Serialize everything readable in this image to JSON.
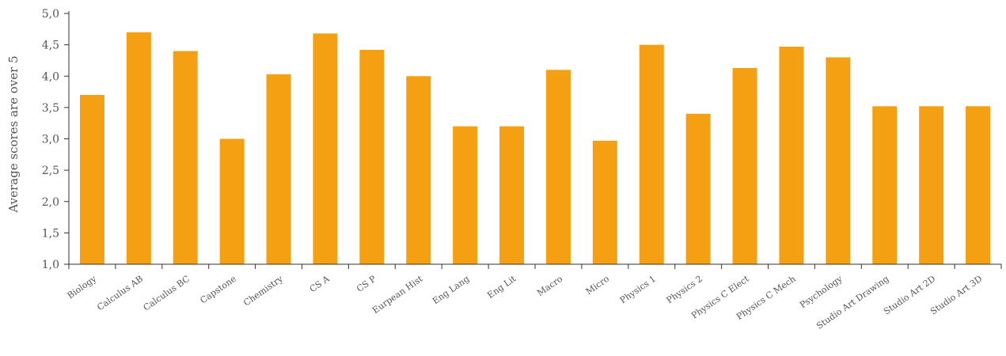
{
  "chart_data": {
    "type": "bar",
    "title": "",
    "xlabel": "",
    "ylabel": "Average scores are over 5",
    "ylim": [
      1.0,
      5.0
    ],
    "yticks": [
      "1,0",
      "1,5",
      "2,0",
      "2,5",
      "3,0",
      "3,5",
      "4,0",
      "4,5",
      "5,0"
    ],
    "grid": false,
    "legend": "none",
    "bar_color": "#f5a012",
    "axis_color": "#333333",
    "categories": [
      "Biology",
      "Calculus AB",
      "Calculus BC",
      "Capstone",
      "Chemistry",
      "CS A",
      "CS P",
      "Eurpean Hist",
      "Eng Lang",
      "Eng Lit",
      "Macro",
      "Micro",
      "Physics 1",
      "Physics 2",
      "Physics C Elect",
      "Physics C Mech",
      "Psychology",
      "Studio Art Drawing",
      "Studio Art 2D",
      "Studio Art 3D"
    ],
    "values": [
      3.7,
      4.7,
      4.4,
      3.0,
      4.03,
      4.68,
      4.42,
      4.0,
      3.2,
      3.2,
      4.1,
      2.97,
      4.5,
      3.4,
      4.13,
      4.47,
      4.3,
      3.52,
      3.52,
      3.52
    ]
  }
}
